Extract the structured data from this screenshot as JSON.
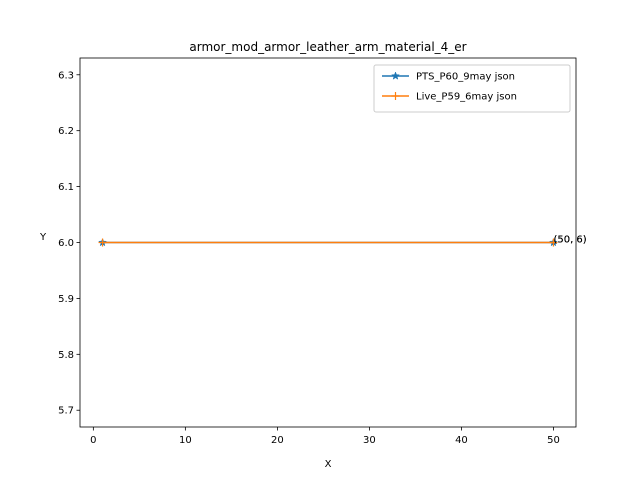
{
  "chart_data": {
    "type": "line",
    "title": "armor_mod_armor_leather_arm_material_4_er",
    "xlabel": "X",
    "ylabel": "Y",
    "xlim": [
      -1.45,
      52.45
    ],
    "ylim": [
      5.67,
      6.33
    ],
    "xticks": [
      0,
      10,
      20,
      30,
      40,
      50
    ],
    "xtick_labels": [
      "0",
      "10",
      "20",
      "30",
      "40",
      "50"
    ],
    "yticks": [
      5.7,
      5.8,
      5.9,
      6.0,
      6.1,
      6.2,
      6.3
    ],
    "ytick_labels": [
      "5.7",
      "5.8",
      "5.9",
      "6.0",
      "6.1",
      "6.2",
      "6.3"
    ],
    "grid": false,
    "legend_position": "top-right",
    "series": [
      {
        "name": "PTS_P60_9may json",
        "color": "#1f77b4",
        "marker": "star",
        "x": [
          1,
          50
        ],
        "y": [
          6,
          6
        ]
      },
      {
        "name": "Live_P59_6may json",
        "color": "#ff7f0e",
        "marker": "plus",
        "x": [
          1,
          50
        ],
        "y": [
          6,
          6
        ]
      }
    ],
    "annotations": [
      {
        "text": "(50, 6)",
        "x": 50,
        "y": 6
      },
      {
        "text": "(50, 6)",
        "x": 50,
        "y": 6
      }
    ]
  }
}
